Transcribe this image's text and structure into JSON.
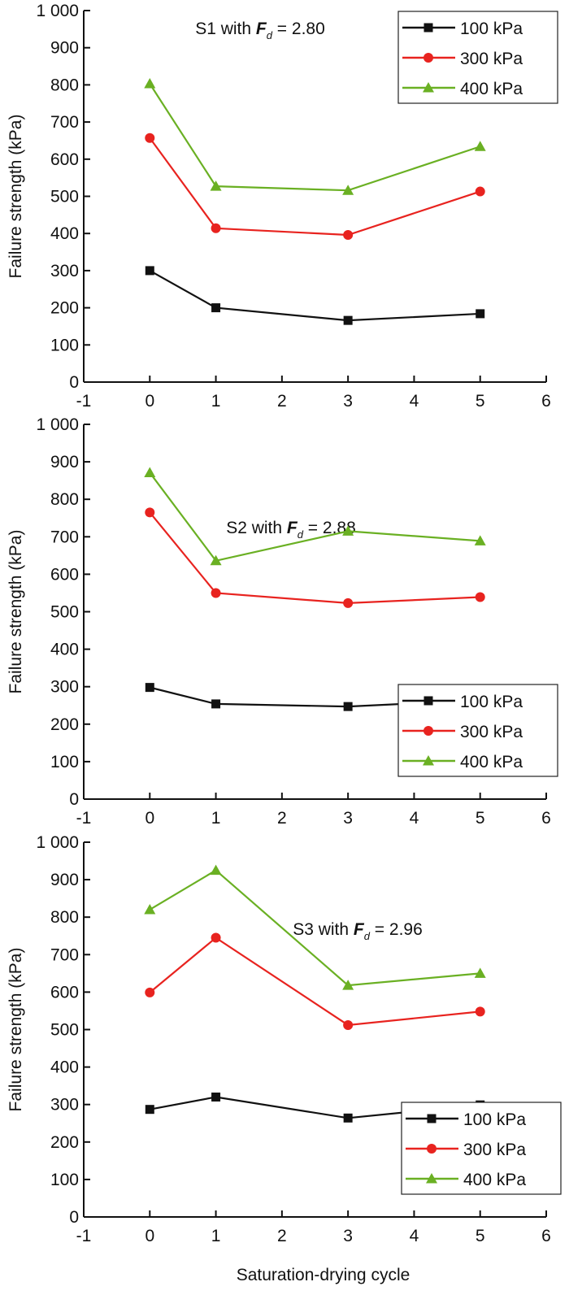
{
  "chart_data": [
    {
      "type": "line",
      "annotation": {
        "prefix": "S1 with ",
        "symbol": "F",
        "subscript": "d",
        "suffix": " = 2.80"
      },
      "xlabel": "",
      "ylabel": "Failure strength (kPa)",
      "xlim": [
        -1,
        6
      ],
      "ylim": [
        0,
        1000
      ],
      "xticks": [
        "-1",
        "0",
        "1",
        "2",
        "3",
        "4",
        "5",
        "6"
      ],
      "yticks": [
        "0",
        "100",
        "200",
        "300",
        "400",
        "500",
        "600",
        "700",
        "800",
        "900",
        "1 000"
      ],
      "legend_placement": "top-right",
      "x": [
        0,
        1,
        3,
        5
      ],
      "series": [
        {
          "name": "100 kPa",
          "color": "#111111",
          "marker": "square",
          "values": [
            300,
            200,
            166,
            184
          ]
        },
        {
          "name": "300 kPa",
          "color": "#e8231f",
          "marker": "circle",
          "values": [
            657,
            414,
            396,
            513
          ]
        },
        {
          "name": "400 kPa",
          "color": "#6ab023",
          "marker": "triangle",
          "values": [
            803,
            527,
            516,
            634
          ]
        }
      ]
    },
    {
      "type": "line",
      "annotation": {
        "prefix": "S2 with ",
        "symbol": "F",
        "subscript": "d",
        "suffix": " = 2.88"
      },
      "xlabel": "",
      "ylabel": "Failure strength (kPa)",
      "xlim": [
        -1,
        6
      ],
      "ylim": [
        0,
        1000
      ],
      "xticks": [
        "-1",
        "0",
        "1",
        "2",
        "3",
        "4",
        "5",
        "6"
      ],
      "yticks": [
        "0",
        "100",
        "200",
        "300",
        "400",
        "500",
        "600",
        "700",
        "800",
        "900",
        "1 000"
      ],
      "legend_placement": "bottom-right",
      "x": [
        0,
        1,
        3,
        5
      ],
      "series": [
        {
          "name": "100 kPa",
          "color": "#111111",
          "marker": "square",
          "values": [
            298,
            254,
            247,
            264
          ]
        },
        {
          "name": "300 kPa",
          "color": "#e8231f",
          "marker": "circle",
          "values": [
            765,
            550,
            523,
            539
          ]
        },
        {
          "name": "400 kPa",
          "color": "#6ab023",
          "marker": "triangle",
          "values": [
            871,
            636,
            715,
            689
          ]
        }
      ]
    },
    {
      "type": "line",
      "annotation": {
        "prefix": "S3 with ",
        "symbol": "F",
        "subscript": "d",
        "suffix": " = 2.96"
      },
      "xlabel": "Saturation-drying cycle",
      "ylabel": "Failure strength (kPa)",
      "xlim": [
        -1,
        6
      ],
      "ylim": [
        0,
        1000
      ],
      "xticks": [
        "-1",
        "0",
        "1",
        "2",
        "3",
        "4",
        "5",
        "6"
      ],
      "yticks": [
        "0",
        "100",
        "200",
        "300",
        "400",
        "500",
        "600",
        "700",
        "800",
        "900",
        "1 000"
      ],
      "legend_placement": "bottom-right",
      "x": [
        0,
        1,
        3,
        5
      ],
      "series": [
        {
          "name": "100 kPa",
          "color": "#111111",
          "marker": "square",
          "values": [
            287,
            320,
            264,
            299
          ]
        },
        {
          "name": "300 kPa",
          "color": "#e8231f",
          "marker": "circle",
          "values": [
            599,
            745,
            512,
            548
          ]
        },
        {
          "name": "400 kPa",
          "color": "#6ab023",
          "marker": "triangle",
          "values": [
            820,
            925,
            618,
            650
          ]
        }
      ]
    }
  ]
}
